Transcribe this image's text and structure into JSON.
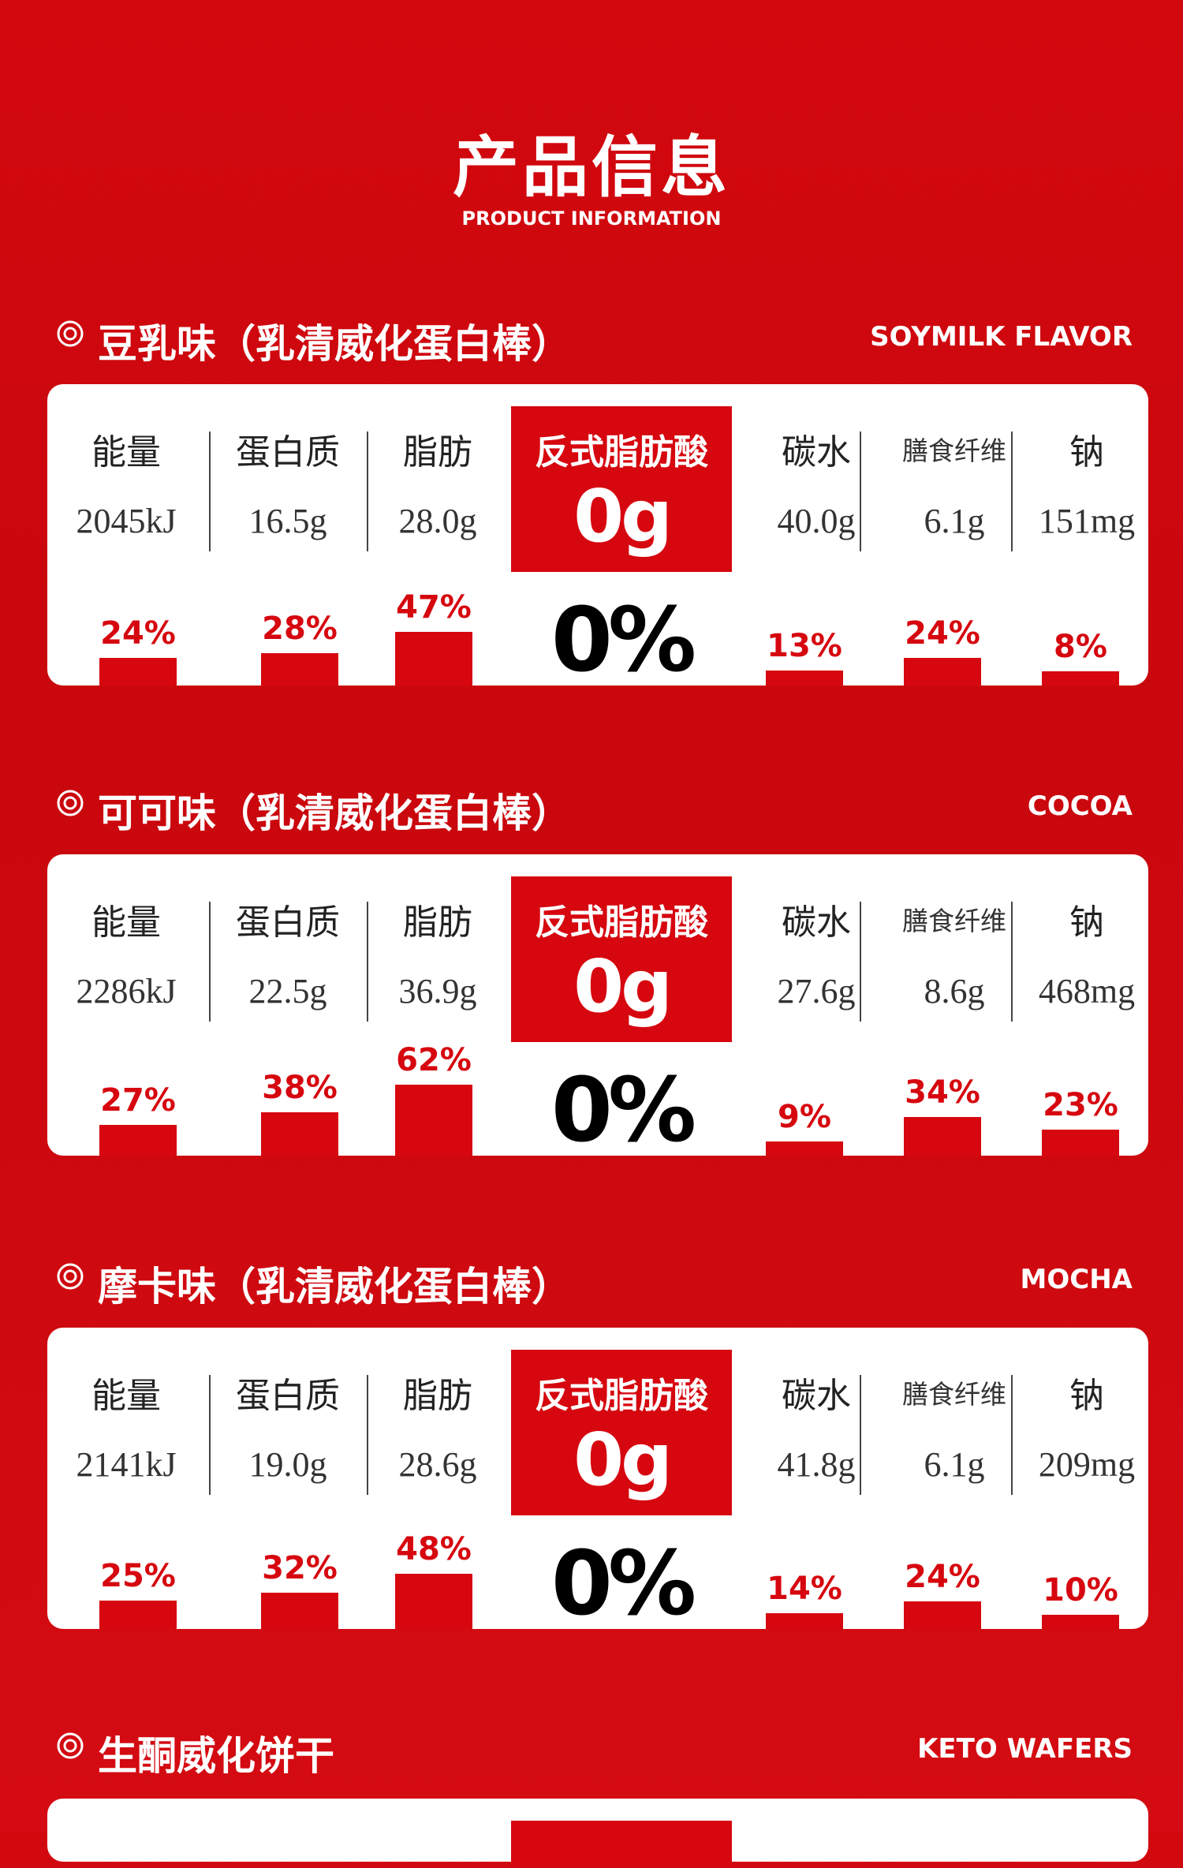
{
  "header": {
    "title": "产品信息",
    "subtitle": "PRODUCT INFORMATION"
  },
  "icon": "circle-bullet-icon",
  "accent_color": "#d6070f",
  "sections": [
    {
      "title": "豆乳味（乳清威化蛋白棒）",
      "title_en": "SOYMILK FLAVOR",
      "nutrients": [
        {
          "name": "能量",
          "value": "2045kJ",
          "pct": "24%",
          "level": 24
        },
        {
          "name": "蛋白质",
          "value": "16.5g",
          "pct": "28%",
          "level": 28
        },
        {
          "name": "脂肪",
          "value": "28.0g",
          "pct": "47%",
          "level": 47
        },
        {
          "name": "碳水",
          "value": "40.0g",
          "pct": "13%",
          "level": 13
        },
        {
          "name": "膳食纤维",
          "value": "6.1g",
          "pct": "24%",
          "level": 24
        },
        {
          "name": "钠",
          "value": "151mg",
          "pct": "8%",
          "level": 8
        }
      ],
      "trans_fat": {
        "name": "反式脂肪酸",
        "value": "0g",
        "pct": "0%"
      }
    },
    {
      "title": "可可味（乳清威化蛋白棒）",
      "title_en": "COCOA",
      "nutrients": [
        {
          "name": "能量",
          "value": "2286kJ",
          "pct": "27%",
          "level": 27
        },
        {
          "name": "蛋白质",
          "value": "22.5g",
          "pct": "38%",
          "level": 38
        },
        {
          "name": "脂肪",
          "value": "36.9g",
          "pct": "62%",
          "level": 62
        },
        {
          "name": "碳水",
          "value": "27.6g",
          "pct": "9%",
          "level": 9
        },
        {
          "name": "膳食纤维",
          "value": "8.6g",
          "pct": "34%",
          "level": 34
        },
        {
          "name": "钠",
          "value": "468mg",
          "pct": "23%",
          "level": 23
        }
      ],
      "trans_fat": {
        "name": "反式脂肪酸",
        "value": "0g",
        "pct": "0%"
      }
    },
    {
      "title": "摩卡味（乳清威化蛋白棒）",
      "title_en": "MOCHA",
      "nutrients": [
        {
          "name": "能量",
          "value": "2141kJ",
          "pct": "25%",
          "level": 25
        },
        {
          "name": "蛋白质",
          "value": "19.0g",
          "pct": "32%",
          "level": 32
        },
        {
          "name": "脂肪",
          "value": "28.6g",
          "pct": "48%",
          "level": 48
        },
        {
          "name": "碳水",
          "value": "41.8g",
          "pct": "14%",
          "level": 14
        },
        {
          "name": "膳食纤维",
          "value": "6.1g",
          "pct": "24%",
          "level": 24
        },
        {
          "name": "钠",
          "value": "209mg",
          "pct": "10%",
          "level": 10
        }
      ],
      "trans_fat": {
        "name": "反式脂肪酸",
        "value": "0g",
        "pct": "0%"
      }
    },
    {
      "title": "生酮威化饼干",
      "title_en": "KETO WAFERS"
    }
  ]
}
